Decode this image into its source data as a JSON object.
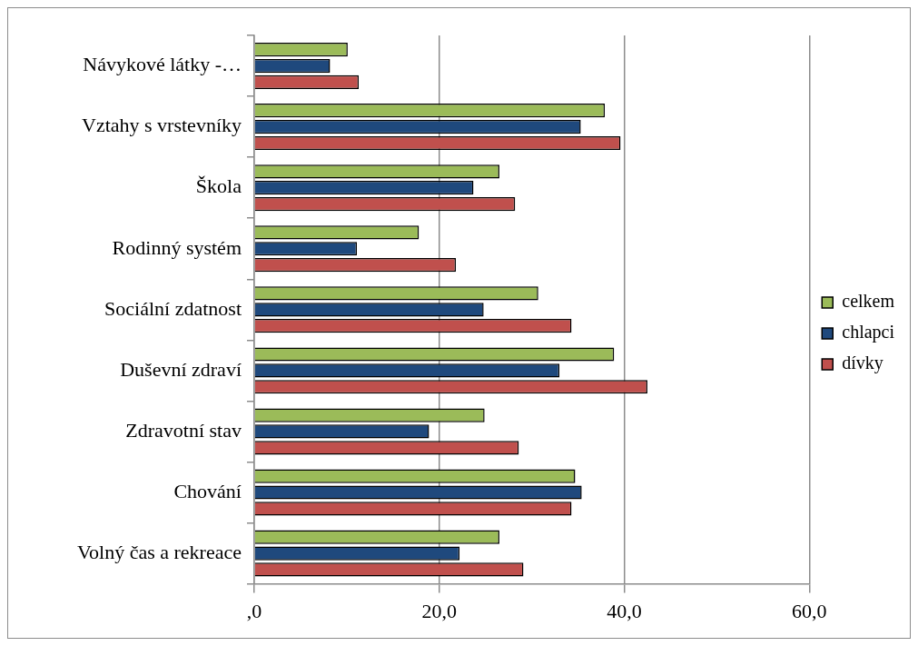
{
  "chart_data": {
    "type": "bar",
    "orientation": "horizontal",
    "categories": [
      "Návykové látky -…",
      "Vztahy s vrstevníky",
      "Škola",
      "Rodinný systém",
      "Sociální zdatnost",
      "Duševní zdraví",
      "Zdravotní stav",
      "Chování",
      "Volný čas a rekreace"
    ],
    "series": [
      {
        "name": "celkem",
        "color": "#9bbb59",
        "values": [
          10.1,
          37.9,
          26.5,
          17.8,
          30.7,
          38.9,
          24.9,
          34.7,
          26.5
        ]
      },
      {
        "name": "chlapci",
        "color": "#1f497d",
        "values": [
          8.2,
          35.3,
          23.7,
          11.1,
          24.8,
          33.0,
          18.9,
          35.4,
          22.2
        ]
      },
      {
        "name": "dívky",
        "color": "#c0504d",
        "values": [
          11.3,
          39.6,
          28.2,
          21.8,
          34.3,
          42.5,
          28.6,
          34.3,
          29.1
        ]
      }
    ],
    "xlim": [
      0,
      60
    ],
    "xticks": [
      {
        "value": 0,
        "label": ",0"
      },
      {
        "value": 20,
        "label": "20,0"
      },
      {
        "value": 40,
        "label": "40,0"
      },
      {
        "value": 60,
        "label": "60,0"
      }
    ],
    "grid": "x",
    "legend": "right"
  }
}
